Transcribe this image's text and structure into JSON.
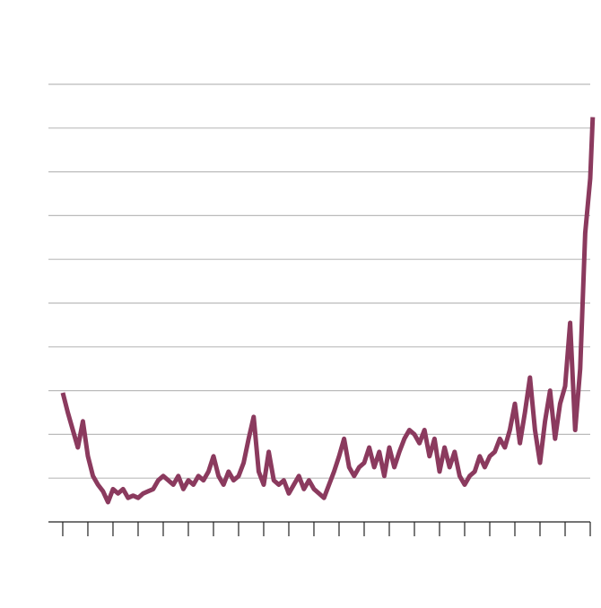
{
  "chart_data": {
    "type": "line",
    "x": [
      0,
      0.2,
      0.4,
      0.6,
      0.8,
      1,
      1.2,
      1.4,
      1.6,
      1.8,
      2,
      2.2,
      2.4,
      2.6,
      2.8,
      3,
      3.2,
      3.4,
      3.6,
      3.8,
      4,
      4.2,
      4.4,
      4.6,
      4.8,
      5,
      5.2,
      5.4,
      5.6,
      5.8,
      6,
      6.2,
      6.4,
      6.6,
      6.8,
      7,
      7.2,
      7.4,
      7.6,
      7.8,
      8,
      8.2,
      8.4,
      8.6,
      8.8,
      9,
      9.2,
      9.4,
      9.6,
      9.8,
      10,
      10.2,
      10.4,
      10.6,
      10.8,
      11,
      11.2,
      11.4,
      11.6,
      11.8,
      12,
      12.2,
      12.4,
      12.6,
      12.8,
      13,
      13.2,
      13.4,
      13.6,
      13.8,
      14,
      14.2,
      14.4,
      14.6,
      14.8,
      15,
      15.2,
      15.4,
      15.6,
      15.8,
      16,
      16.2,
      16.4,
      16.6,
      16.8,
      17,
      17.2,
      17.4,
      17.6,
      17.8,
      18,
      18.2,
      18.4,
      18.6,
      18.8,
      19,
      19.2,
      19.4,
      19.6,
      19.8,
      20,
      20.2,
      20.4,
      20.6,
      20.8,
      21,
      21.1
    ],
    "series": [
      {
        "color": "#8b3a5e",
        "values": [
          2.95,
          2.5,
          2.1,
          1.7,
          2.3,
          1.5,
          1.05,
          0.85,
          0.7,
          0.45,
          0.75,
          0.65,
          0.75,
          0.55,
          0.6,
          0.55,
          0.65,
          0.7,
          0.75,
          0.95,
          1.05,
          0.95,
          0.85,
          1.05,
          0.75,
          0.95,
          0.85,
          1.05,
          0.95,
          1.15,
          1.5,
          1.05,
          0.85,
          1.15,
          0.95,
          1.05,
          1.35,
          1.9,
          2.4,
          1.15,
          0.85,
          1.6,
          0.95,
          0.85,
          0.95,
          0.65,
          0.85,
          1.05,
          0.75,
          0.95,
          0.75,
          0.65,
          0.55,
          0.85,
          1.15,
          1.5,
          1.9,
          1.25,
          1.05,
          1.25,
          1.35,
          1.7,
          1.25,
          1.6,
          1.05,
          1.7,
          1.25,
          1.6,
          1.9,
          2.1,
          2.0,
          1.8,
          2.1,
          1.5,
          1.9,
          1.15,
          1.7,
          1.25,
          1.6,
          1.05,
          0.85,
          1.05,
          1.15,
          1.5,
          1.25,
          1.5,
          1.6,
          1.9,
          1.7,
          2.1,
          2.7,
          1.8,
          2.5,
          3.3,
          2.1,
          1.35,
          2.3,
          3.0,
          1.9,
          2.7,
          3.1,
          4.55,
          2.1,
          3.5,
          6.6,
          7.85,
          9.25
        ]
      }
    ],
    "xlim": [
      -0.57,
      21
    ],
    "xticks": [
      0,
      1,
      2,
      3,
      4,
      5,
      6,
      7,
      8,
      9,
      10,
      11,
      12,
      13,
      14,
      15,
      16,
      17,
      18,
      19,
      20,
      21
    ],
    "ylim": [
      0,
      10
    ],
    "yticks": [
      1,
      2,
      3,
      4,
      5,
      6,
      7,
      8,
      9,
      10
    ],
    "grid": true
  }
}
